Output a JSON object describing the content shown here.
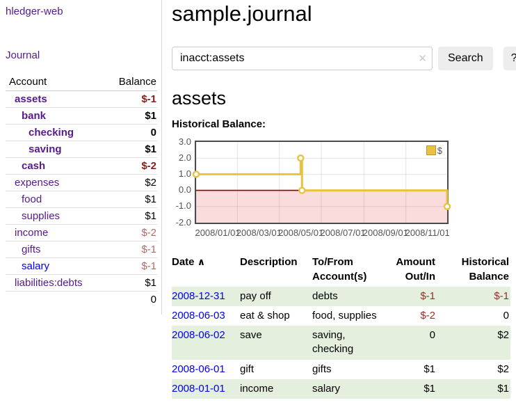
{
  "app": {
    "brand": "hledger-web",
    "nav_journal": "Journal"
  },
  "colors": {
    "brand_purple": "#551a8b",
    "link_blue": "#0000ee",
    "negative_bold": "#8f1a1a",
    "negative_muted": "#b56a6a",
    "negative_table": "#9e2b2b",
    "row_green": "#e4efdd",
    "chart_gold": "#e8c240",
    "chart_negative_region": "#fbdcdc",
    "chart_zero_line": "#8b0000"
  },
  "sidebar": {
    "header": {
      "account": "Account",
      "balance": "Balance"
    },
    "accounts": [
      {
        "name": "assets",
        "balance": "$-1"
      },
      {
        "name": "bank",
        "balance": "$1"
      },
      {
        "name": "checking",
        "balance": "0"
      },
      {
        "name": "saving",
        "balance": "$1"
      },
      {
        "name": "cash",
        "balance": "$-2"
      },
      {
        "name": "expenses",
        "balance": "$2"
      },
      {
        "name": "food",
        "balance": "$1"
      },
      {
        "name": "supplies",
        "balance": "$1"
      },
      {
        "name": "income",
        "balance": "$-2"
      },
      {
        "name": "gifts",
        "balance": "$-1"
      },
      {
        "name": "salary",
        "balance": "$-1"
      },
      {
        "name": "liabilities:debts",
        "balance": "$1"
      }
    ],
    "total": "0"
  },
  "header": {
    "title": "sample.journal"
  },
  "search": {
    "value": "inacct:assets",
    "clear_icon": "✕",
    "button": "Search",
    "help_button": "?"
  },
  "account_page": {
    "heading": "assets",
    "chart_label": "Historical Balance:"
  },
  "chart_data": {
    "type": "line",
    "title": "Historical Balance:",
    "step": "after",
    "series": [
      {
        "name": "$",
        "color": "#e8c240",
        "points": [
          {
            "date": "2008-01-01",
            "value": 1
          },
          {
            "date": "2008-06-01",
            "value": 2
          },
          {
            "date": "2008-06-03",
            "value": 0
          },
          {
            "date": "2008-12-31",
            "value": -1
          }
        ]
      }
    ],
    "xlim": [
      "2008-01-01",
      "2008-12-31"
    ],
    "ylim": [
      -2,
      3
    ],
    "yticks": [
      3.0,
      2.0,
      1.0,
      0.0,
      -1.0,
      -2.0
    ],
    "ytick_labels": [
      "3.0",
      "2.0",
      "1.0",
      "0.0",
      "-1.0",
      "-2.0"
    ],
    "xtick_dates": [
      "2008-01-01",
      "2008-03-01",
      "2008-05-01",
      "2008-07-01",
      "2008-09-01",
      "2008-11-01"
    ],
    "xtick_labels": [
      "2008/01/01",
      "2008/03/01",
      "2008/05/01",
      "2008/07/01",
      "2008/09/01",
      "2008/11/01"
    ],
    "legend": "$",
    "grid": true,
    "legend_position": "top-right",
    "negative_region_color": "#fbdcdc",
    "zero_line_color": "#8b0000"
  },
  "register": {
    "columns": {
      "date": "Date",
      "sort_icon": "∧",
      "description": "Description",
      "accounts": "To/From Account(s)",
      "amount": "Amount Out/In",
      "balance": "Historical Balance"
    },
    "rows": [
      {
        "date": "2008-12-31",
        "description": "pay off",
        "accounts": "debts",
        "amount": "$-1",
        "balance": "$-1"
      },
      {
        "date": "2008-06-03",
        "description": "eat & shop",
        "accounts": "food, supplies",
        "amount": "$-2",
        "balance": "0"
      },
      {
        "date": "2008-06-02",
        "description": "save",
        "accounts": "saving, checking",
        "amount": "0",
        "balance": "$2"
      },
      {
        "date": "2008-06-01",
        "description": "gift",
        "accounts": "gifts",
        "amount": "$1",
        "balance": "$2"
      },
      {
        "date": "2008-01-01",
        "description": "income",
        "accounts": "salary",
        "amount": "$1",
        "balance": "$1"
      }
    ]
  }
}
